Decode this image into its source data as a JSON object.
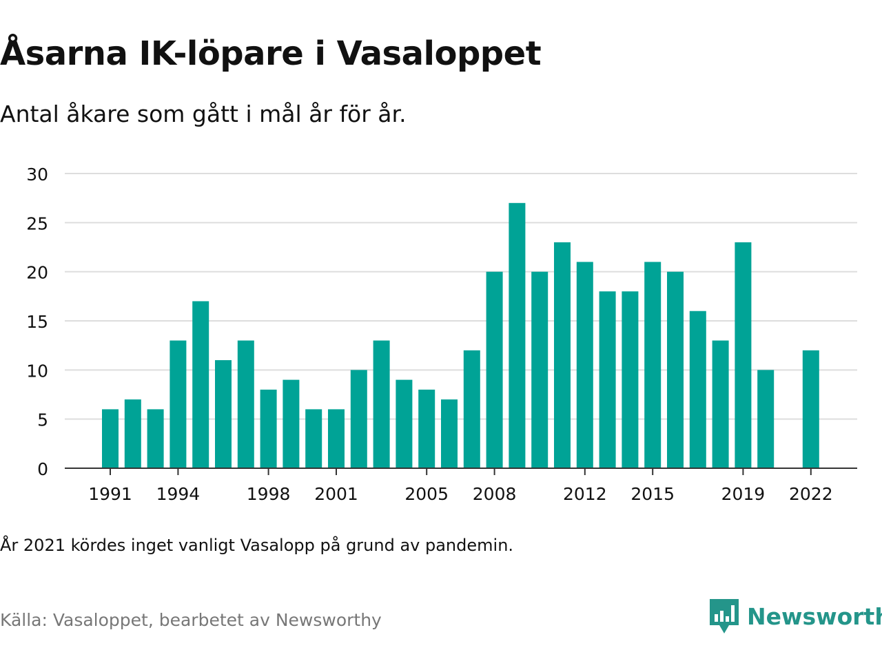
{
  "title": "Åsarna IK-löpare i Vasaloppet",
  "subtitle": "Antal åkare som gått i mål år för år.",
  "note": "År 2021 kördes inget vanligt Vasalopp på grund av pandemin.",
  "source": "Källa: Vasaloppet, bearbetet av Newsworthy",
  "brand": {
    "name": "Newsworthy",
    "icon": "newsworthy-logo-icon",
    "color": "#24958a"
  },
  "colors": {
    "bar": "#00a396",
    "grid": "#dddddd",
    "axis": "#333333",
    "text": "#111111"
  },
  "chart_data": {
    "type": "bar",
    "title": "Åsarna IK-löpare i Vasaloppet",
    "xlabel": "",
    "ylabel": "",
    "ylim": [
      0,
      30
    ],
    "yticks": [
      0,
      5,
      10,
      15,
      20,
      25,
      30
    ],
    "xticks": [
      1991,
      1994,
      1998,
      2001,
      2005,
      2008,
      2012,
      2015,
      2019,
      2022
    ],
    "grid": true,
    "categories": [
      1991,
      1992,
      1993,
      1994,
      1995,
      1996,
      1997,
      1998,
      1999,
      2000,
      2001,
      2002,
      2003,
      2004,
      2005,
      2006,
      2007,
      2008,
      2009,
      2010,
      2011,
      2012,
      2013,
      2014,
      2015,
      2016,
      2017,
      2018,
      2019,
      2020,
      2021,
      2022
    ],
    "values": [
      6,
      7,
      6,
      13,
      17,
      11,
      13,
      8,
      9,
      6,
      6,
      10,
      13,
      9,
      8,
      7,
      12,
      20,
      27,
      20,
      23,
      21,
      18,
      18,
      21,
      20,
      16,
      13,
      23,
      10,
      null,
      12
    ]
  }
}
